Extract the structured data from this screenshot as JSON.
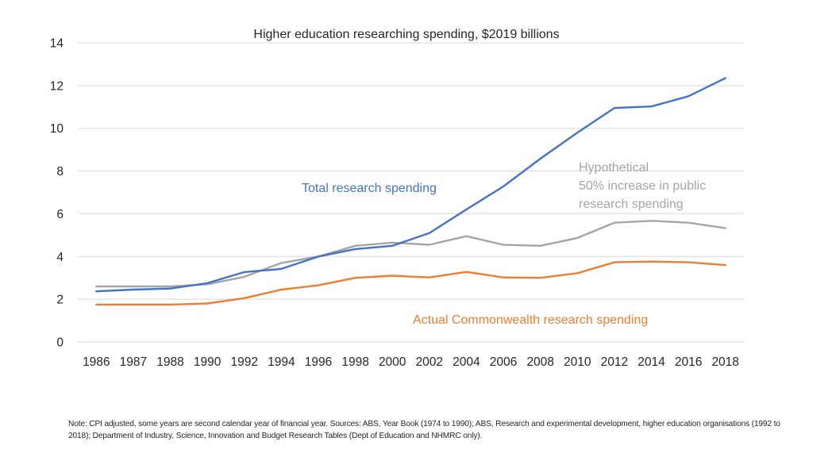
{
  "chart_data": {
    "type": "line",
    "title": "Higher education researching spending, $2019 billions",
    "xlabel": "",
    "ylabel": "",
    "ylim": [
      0,
      14
    ],
    "yticks": [
      0,
      2,
      4,
      6,
      8,
      10,
      12,
      14
    ],
    "grid": true,
    "legend": "none (inline annotations)",
    "categories": [
      "1986",
      "1987",
      "1988",
      "1990",
      "1992",
      "1994",
      "1996",
      "1998",
      "2000",
      "2002",
      "2004",
      "2006",
      "2008",
      "2010",
      "2012",
      "2014",
      "2016",
      "2018"
    ],
    "series": [
      {
        "name": "Total research spending",
        "color": "#4472C4",
        "values": [
          2.37,
          2.45,
          2.5,
          2.75,
          3.27,
          3.42,
          4.0,
          4.35,
          4.5,
          5.1,
          6.2,
          7.28,
          8.58,
          9.8,
          10.95,
          11.02,
          11.5,
          12.35
        ]
      },
      {
        "name": "Hypothetical 50% increase in public research spending",
        "color": "#A5A5A5",
        "values": [
          2.6,
          2.6,
          2.6,
          2.7,
          3.05,
          3.7,
          4.0,
          4.5,
          4.65,
          4.55,
          4.95,
          4.55,
          4.5,
          4.87,
          5.58,
          5.67,
          5.58,
          5.33
        ]
      },
      {
        "name": "Actual Commonwealth research spending",
        "color": "#ED7D31",
        "values": [
          1.75,
          1.75,
          1.75,
          1.8,
          2.05,
          2.45,
          2.65,
          3.0,
          3.1,
          3.02,
          3.28,
          3.02,
          3.0,
          3.22,
          3.73,
          3.76,
          3.73,
          3.6
        ]
      }
    ],
    "annotations": [
      {
        "series": 0,
        "lines": [
          "Total research spending"
        ],
        "color": "#4472C4"
      },
      {
        "series": 1,
        "lines": [
          "Hypothetical",
          "50% increase in public",
          "research spending"
        ],
        "color": "#A5A5A5"
      },
      {
        "series": 2,
        "lines": [
          "Actual Commonwealth research spending"
        ],
        "color": "#ED7D31"
      }
    ],
    "gridline_color": "#D9D9D9",
    "text_color": "#262626"
  },
  "note": "Note: CPI adjusted, some years are second calendar year of financial year. Sources: ABS, Year Book (1974 to 1990); ABS, Research and experimental development, higher education organisations (1992 to 2018); Department of Industry, Science, Innovation and Budget Research Tables (Dept of Education and NHMRC only)."
}
